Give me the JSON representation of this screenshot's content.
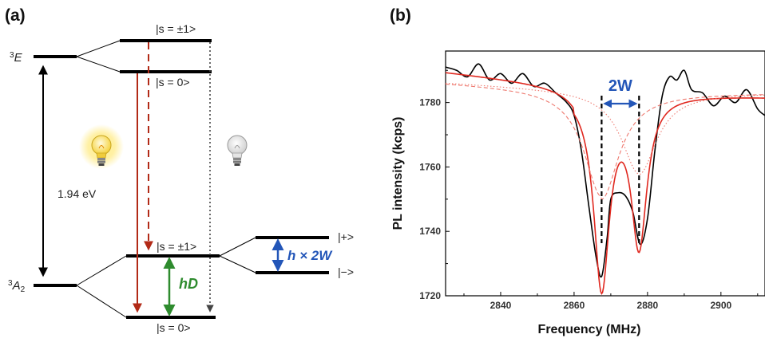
{
  "panels": {
    "a": {
      "label": "(a)",
      "level_labels": {
        "excited_pm1": "|s = ±1>",
        "excited_0": "|s = 0>",
        "ground_pm1": "|s = ±1>",
        "ground_0": "|s = 0>",
        "split_plus": "|+>",
        "split_minus": "|−>"
      },
      "term_E": {
        "sup": "3",
        "main": "E"
      },
      "term_A": {
        "sup": "3",
        "main": "A",
        "sub": "2"
      },
      "energy_gap": "1.94 eV",
      "splitting_D": "hD",
      "splitting_W": "h × 2W",
      "colors": {
        "red_arrow": "#b22a17",
        "green_arrow": "#2e8b2e",
        "blue_arrow": "#2356b8",
        "level": "#000000"
      },
      "icons": [
        "lit-bulb-icon",
        "unlit-bulb-icon"
      ]
    },
    "b": {
      "label": "(b)",
      "annotation_2W": "2W"
    }
  },
  "chart_data": {
    "type": "line",
    "xlabel": "Frequency (MHz)",
    "ylabel": "PL intensity (kcps)",
    "xlim": [
      2825,
      2912
    ],
    "ylim": [
      1720,
      1796
    ],
    "xticks": [
      2840,
      2860,
      2880,
      2900
    ],
    "yticks": [
      1720,
      1740,
      1760,
      1780
    ],
    "grid": false,
    "series": [
      {
        "style": "data",
        "color": "#000000",
        "x": [
          2825,
          2828,
          2831,
          2834,
          2837,
          2840,
          2843,
          2846,
          2849,
          2852,
          2855,
          2858,
          2860,
          2862,
          2864,
          2866,
          2867.5,
          2869,
          2870,
          2872,
          2874,
          2876,
          2878,
          2880,
          2882,
          2884,
          2886,
          2888,
          2890,
          2892,
          2895,
          2898,
          2901,
          2904,
          2907,
          2910,
          2912
        ],
        "y": [
          1791,
          1790,
          1788,
          1792,
          1787,
          1789,
          1786,
          1789,
          1785,
          1786,
          1783,
          1780,
          1776,
          1765,
          1748,
          1732,
          1726,
          1738,
          1750,
          1752,
          1751,
          1746,
          1736,
          1744,
          1765,
          1782,
          1788,
          1787,
          1790,
          1784,
          1783,
          1779,
          1782,
          1780,
          1784,
          1778,
          1776
        ]
      },
      {
        "style": "fit",
        "color": "#e0281f",
        "model": "double_lorentzian",
        "baseline": 1783,
        "centers": [
          2867.5,
          2877.7
        ],
        "amplitudes": [
          60,
          46
        ],
        "hwhm": 2.6,
        "slope": -0.12
      },
      {
        "style": "component-dashed",
        "color": "#ee7a70",
        "model": "lorentzian",
        "center": 2867.5,
        "amplitude": 60,
        "hwhm": 2.6
      },
      {
        "style": "component-dotted",
        "color": "#ee7a70",
        "model": "lorentzian",
        "center": 2877.7,
        "amplitude": 46,
        "hwhm": 2.6
      }
    ],
    "markers": [
      2867.5,
      2877.7
    ]
  }
}
